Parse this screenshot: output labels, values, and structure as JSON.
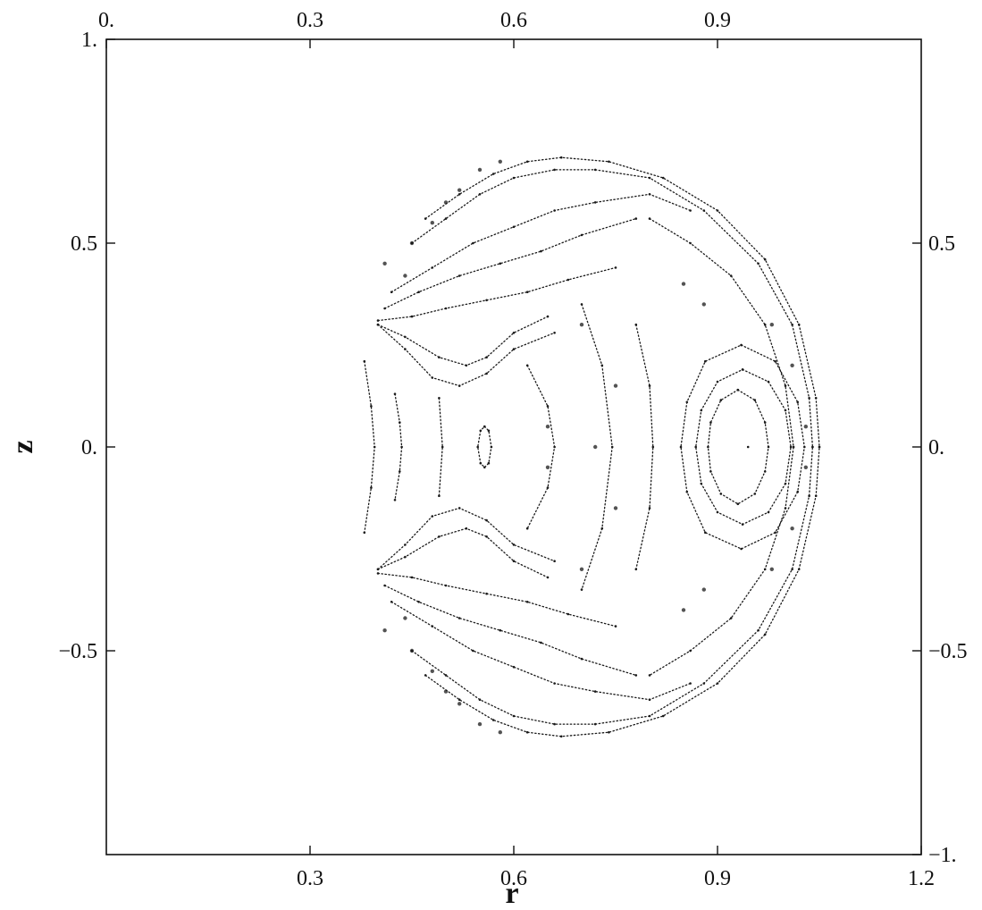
{
  "chart_data": {
    "type": "scatter",
    "title": "",
    "xlabel": "r",
    "ylabel": "z",
    "xlim": [
      0,
      1.2
    ],
    "ylim": [
      -1,
      1
    ],
    "grid": false,
    "legend": "none",
    "point_color": "#1a1a1a",
    "x_ticks_bottom": [
      {
        "value": 0.3,
        "label": "0.3"
      },
      {
        "value": 0.6,
        "label": "0.6"
      },
      {
        "value": 0.9,
        "label": "0.9"
      },
      {
        "value": 1.2,
        "label": "1.2"
      }
    ],
    "x_ticks_top": [
      {
        "value": 0.0,
        "label": "0."
      },
      {
        "value": 0.3,
        "label": "0.3"
      },
      {
        "value": 0.6,
        "label": "0.6"
      },
      {
        "value": 0.9,
        "label": "0.9"
      }
    ],
    "y_ticks_left": [
      {
        "value": 1.0,
        "label": "1."
      },
      {
        "value": 0.5,
        "label": "0.5"
      },
      {
        "value": 0.0,
        "label": "0."
      },
      {
        "value": -0.5,
        "label": "−0.5"
      }
    ],
    "y_ticks_right": [
      {
        "value": 0.5,
        "label": "0.5"
      },
      {
        "value": 0.0,
        "label": "0."
      },
      {
        "value": -0.5,
        "label": "−0.5"
      },
      {
        "value": -1.0,
        "label": "−1."
      }
    ],
    "series": [
      {
        "style": "curve",
        "points": [
          [
            0.38,
            0.21
          ],
          [
            0.39,
            0.1
          ],
          [
            0.395,
            0.0
          ],
          [
            0.39,
            -0.1
          ],
          [
            0.38,
            -0.21
          ]
        ]
      },
      {
        "style": "curve",
        "points": [
          [
            0.425,
            0.13
          ],
          [
            0.432,
            0.06
          ],
          [
            0.435,
            0.0
          ],
          [
            0.432,
            -0.06
          ],
          [
            0.425,
            -0.13
          ]
        ]
      },
      {
        "style": "curve",
        "points": [
          [
            0.49,
            0.12
          ],
          [
            0.495,
            0.0
          ],
          [
            0.49,
            -0.12
          ]
        ]
      },
      {
        "style": "curve",
        "points": [
          [
            0.557,
            0.05
          ],
          [
            0.563,
            0.04
          ],
          [
            0.567,
            0.0
          ],
          [
            0.563,
            -0.04
          ],
          [
            0.557,
            -0.05
          ],
          [
            0.551,
            -0.04
          ],
          [
            0.547,
            0.0
          ],
          [
            0.551,
            0.04
          ],
          [
            0.557,
            0.05
          ]
        ]
      },
      {
        "style": "curve",
        "points": [
          [
            0.937,
            0.19
          ],
          [
            0.975,
            0.16
          ],
          [
            1.0,
            0.09
          ],
          [
            1.008,
            0.0
          ],
          [
            1.0,
            -0.09
          ],
          [
            0.975,
            -0.16
          ],
          [
            0.937,
            -0.19
          ],
          [
            0.9,
            -0.16
          ],
          [
            0.876,
            -0.09
          ],
          [
            0.868,
            0.0
          ],
          [
            0.876,
            0.09
          ],
          [
            0.9,
            0.16
          ],
          [
            0.937,
            0.19
          ]
        ]
      },
      {
        "style": "curve",
        "points": [
          [
            0.935,
            0.25
          ],
          [
            0.985,
            0.21
          ],
          [
            1.018,
            0.11
          ],
          [
            1.028,
            0.0
          ],
          [
            1.018,
            -0.11
          ],
          [
            0.985,
            -0.21
          ],
          [
            0.935,
            -0.25
          ],
          [
            0.882,
            -0.21
          ],
          [
            0.855,
            -0.11
          ],
          [
            0.846,
            0.0
          ],
          [
            0.855,
            0.11
          ],
          [
            0.882,
            0.21
          ],
          [
            0.935,
            0.25
          ]
        ]
      },
      {
        "style": "curve",
        "points": [
          [
            0.93,
            0.14
          ],
          [
            0.955,
            0.115
          ],
          [
            0.97,
            0.06
          ],
          [
            0.975,
            0.0
          ],
          [
            0.97,
            -0.06
          ],
          [
            0.955,
            -0.115
          ],
          [
            0.93,
            -0.14
          ],
          [
            0.905,
            -0.115
          ],
          [
            0.89,
            -0.06
          ],
          [
            0.886,
            0.0
          ],
          [
            0.89,
            0.06
          ],
          [
            0.905,
            0.115
          ],
          [
            0.93,
            0.14
          ]
        ]
      },
      {
        "style": "curve",
        "points": [
          [
            0.4,
            0.3
          ],
          [
            0.44,
            0.27
          ],
          [
            0.49,
            0.22
          ],
          [
            0.53,
            0.2
          ],
          [
            0.56,
            0.22
          ],
          [
            0.6,
            0.28
          ],
          [
            0.65,
            0.32
          ]
        ]
      },
      {
        "style": "curve",
        "points": [
          [
            0.4,
            0.3
          ],
          [
            0.44,
            0.24
          ],
          [
            0.48,
            0.17
          ],
          [
            0.52,
            0.15
          ],
          [
            0.56,
            0.18
          ],
          [
            0.6,
            0.24
          ],
          [
            0.66,
            0.28
          ]
        ]
      },
      {
        "style": "curve",
        "points": [
          [
            0.4,
            0.31
          ],
          [
            0.45,
            0.32
          ],
          [
            0.5,
            0.34
          ],
          [
            0.56,
            0.36
          ],
          [
            0.62,
            0.38
          ],
          [
            0.68,
            0.41
          ],
          [
            0.75,
            0.44
          ]
        ]
      },
      {
        "style": "curve",
        "points": [
          [
            0.41,
            0.34
          ],
          [
            0.46,
            0.38
          ],
          [
            0.52,
            0.42
          ],
          [
            0.58,
            0.45
          ],
          [
            0.64,
            0.48
          ],
          [
            0.7,
            0.52
          ],
          [
            0.78,
            0.56
          ]
        ]
      },
      {
        "style": "curve",
        "points": [
          [
            0.42,
            0.38
          ],
          [
            0.48,
            0.44
          ],
          [
            0.54,
            0.5
          ],
          [
            0.6,
            0.54
          ],
          [
            0.66,
            0.58
          ],
          [
            0.72,
            0.6
          ],
          [
            0.8,
            0.62
          ],
          [
            0.86,
            0.58
          ]
        ]
      },
      {
        "style": "curve",
        "points": [
          [
            0.45,
            0.5
          ],
          [
            0.5,
            0.56
          ],
          [
            0.55,
            0.62
          ],
          [
            0.6,
            0.66
          ],
          [
            0.66,
            0.68
          ],
          [
            0.72,
            0.68
          ],
          [
            0.8,
            0.66
          ],
          [
            0.88,
            0.58
          ],
          [
            0.96,
            0.45
          ],
          [
            1.01,
            0.3
          ],
          [
            1.035,
            0.12
          ],
          [
            1.04,
            0.0
          ]
        ]
      },
      {
        "style": "curve",
        "points": [
          [
            0.47,
            0.56
          ],
          [
            0.52,
            0.62
          ],
          [
            0.57,
            0.67
          ],
          [
            0.62,
            0.7
          ],
          [
            0.67,
            0.71
          ],
          [
            0.74,
            0.7
          ],
          [
            0.82,
            0.66
          ],
          [
            0.9,
            0.58
          ],
          [
            0.97,
            0.46
          ],
          [
            1.02,
            0.3
          ],
          [
            1.045,
            0.12
          ],
          [
            1.05,
            0.0
          ]
        ]
      },
      {
        "style": "curve",
        "points": [
          [
            0.4,
            -0.3
          ],
          [
            0.44,
            -0.27
          ],
          [
            0.49,
            -0.22
          ],
          [
            0.53,
            -0.2
          ],
          [
            0.56,
            -0.22
          ],
          [
            0.6,
            -0.28
          ],
          [
            0.65,
            -0.32
          ]
        ]
      },
      {
        "style": "curve",
        "points": [
          [
            0.4,
            -0.3
          ],
          [
            0.44,
            -0.24
          ],
          [
            0.48,
            -0.17
          ],
          [
            0.52,
            -0.15
          ],
          [
            0.56,
            -0.18
          ],
          [
            0.6,
            -0.24
          ],
          [
            0.66,
            -0.28
          ]
        ]
      },
      {
        "style": "curve",
        "points": [
          [
            0.4,
            -0.31
          ],
          [
            0.45,
            -0.32
          ],
          [
            0.5,
            -0.34
          ],
          [
            0.56,
            -0.36
          ],
          [
            0.62,
            -0.38
          ],
          [
            0.68,
            -0.41
          ],
          [
            0.75,
            -0.44
          ]
        ]
      },
      {
        "style": "curve",
        "points": [
          [
            0.41,
            -0.34
          ],
          [
            0.46,
            -0.38
          ],
          [
            0.52,
            -0.42
          ],
          [
            0.58,
            -0.45
          ],
          [
            0.64,
            -0.48
          ],
          [
            0.7,
            -0.52
          ],
          [
            0.78,
            -0.56
          ]
        ]
      },
      {
        "style": "curve",
        "points": [
          [
            0.42,
            -0.38
          ],
          [
            0.48,
            -0.44
          ],
          [
            0.54,
            -0.5
          ],
          [
            0.6,
            -0.54
          ],
          [
            0.66,
            -0.58
          ],
          [
            0.72,
            -0.6
          ],
          [
            0.8,
            -0.62
          ],
          [
            0.86,
            -0.58
          ]
        ]
      },
      {
        "style": "curve",
        "points": [
          [
            0.45,
            -0.5
          ],
          [
            0.5,
            -0.56
          ],
          [
            0.55,
            -0.62
          ],
          [
            0.6,
            -0.66
          ],
          [
            0.66,
            -0.68
          ],
          [
            0.72,
            -0.68
          ],
          [
            0.8,
            -0.66
          ],
          [
            0.88,
            -0.58
          ],
          [
            0.96,
            -0.45
          ],
          [
            1.01,
            -0.3
          ],
          [
            1.035,
            -0.12
          ],
          [
            1.04,
            0.0
          ]
        ]
      },
      {
        "style": "curve",
        "points": [
          [
            0.47,
            -0.56
          ],
          [
            0.52,
            -0.62
          ],
          [
            0.57,
            -0.67
          ],
          [
            0.62,
            -0.7
          ],
          [
            0.67,
            -0.71
          ],
          [
            0.74,
            -0.7
          ],
          [
            0.82,
            -0.66
          ],
          [
            0.9,
            -0.58
          ],
          [
            0.97,
            -0.46
          ],
          [
            1.02,
            -0.3
          ],
          [
            1.045,
            -0.12
          ],
          [
            1.05,
            0.0
          ]
        ]
      },
      {
        "style": "curve",
        "points": [
          [
            0.8,
            0.56
          ],
          [
            0.86,
            0.5
          ],
          [
            0.92,
            0.42
          ],
          [
            0.97,
            0.3
          ],
          [
            1.0,
            0.15
          ],
          [
            1.012,
            0.0
          ],
          [
            1.0,
            -0.15
          ],
          [
            0.97,
            -0.3
          ],
          [
            0.92,
            -0.42
          ],
          [
            0.86,
            -0.5
          ],
          [
            0.8,
            -0.56
          ]
        ]
      },
      {
        "style": "curve",
        "points": [
          [
            0.62,
            0.2
          ],
          [
            0.65,
            0.1
          ],
          [
            0.66,
            0.0
          ],
          [
            0.65,
            -0.1
          ],
          [
            0.62,
            -0.2
          ]
        ]
      },
      {
        "style": "curve",
        "points": [
          [
            0.7,
            0.35
          ],
          [
            0.73,
            0.2
          ],
          [
            0.745,
            0.0
          ],
          [
            0.73,
            -0.2
          ],
          [
            0.7,
            -0.35
          ]
        ]
      },
      {
        "style": "curve",
        "points": [
          [
            0.78,
            0.3
          ],
          [
            0.8,
            0.15
          ],
          [
            0.805,
            0.0
          ],
          [
            0.8,
            -0.15
          ],
          [
            0.78,
            -0.3
          ]
        ]
      },
      {
        "style": "chaotic",
        "points": [
          [
            0.41,
            0.45
          ],
          [
            0.45,
            0.5
          ],
          [
            0.5,
            0.6
          ],
          [
            0.55,
            0.68
          ],
          [
            0.44,
            0.42
          ],
          [
            0.48,
            0.55
          ],
          [
            0.52,
            0.63
          ],
          [
            0.58,
            0.7
          ]
        ]
      },
      {
        "style": "chaotic",
        "points": [
          [
            0.41,
            -0.45
          ],
          [
            0.45,
            -0.5
          ],
          [
            0.5,
            -0.6
          ],
          [
            0.55,
            -0.68
          ],
          [
            0.44,
            -0.42
          ],
          [
            0.48,
            -0.55
          ],
          [
            0.52,
            -0.63
          ],
          [
            0.58,
            -0.7
          ]
        ]
      },
      {
        "style": "chaotic",
        "points": [
          [
            0.98,
            0.3
          ],
          [
            1.01,
            0.2
          ],
          [
            1.03,
            0.05
          ],
          [
            1.03,
            -0.05
          ],
          [
            1.01,
            -0.2
          ],
          [
            0.98,
            -0.3
          ],
          [
            0.85,
            0.4
          ],
          [
            0.88,
            0.35
          ],
          [
            0.85,
            -0.4
          ],
          [
            0.88,
            -0.35
          ]
        ]
      },
      {
        "style": "chaotic",
        "points": [
          [
            0.7,
            0.3
          ],
          [
            0.75,
            0.15
          ],
          [
            0.72,
            0.0
          ],
          [
            0.75,
            -0.15
          ],
          [
            0.7,
            -0.3
          ],
          [
            0.65,
            0.05
          ],
          [
            0.65,
            -0.05
          ]
        ]
      },
      {
        "style": "point",
        "points": [
          [
            0.945,
            0.0
          ]
        ]
      }
    ]
  }
}
